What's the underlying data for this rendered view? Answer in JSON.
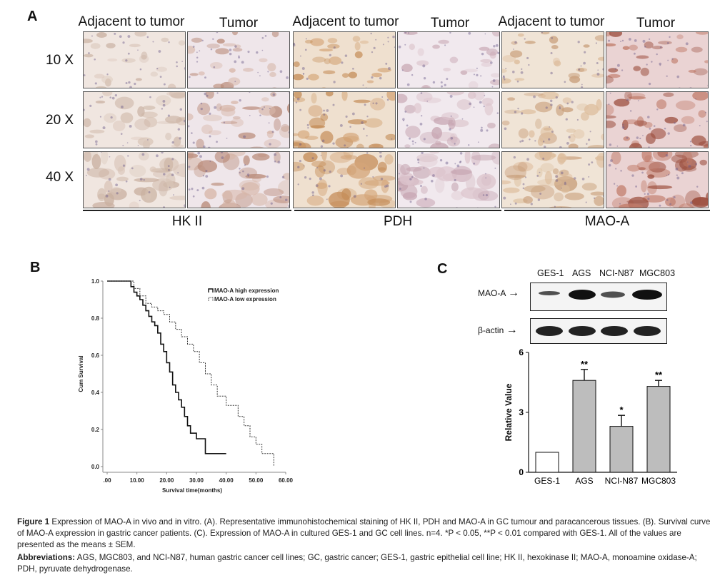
{
  "panel_a": {
    "letter": "A",
    "columns": [
      "Adjacent to tumor",
      "Tumor",
      "Adjacent to tumor",
      "Tumor",
      "Adjacent to tumor",
      "Tumor"
    ],
    "rows": [
      "10 X",
      "20 X",
      "40 X"
    ],
    "markers": [
      "HK II",
      "PDH",
      "MAO-A"
    ]
  },
  "panel_b": {
    "letter": "B"
  },
  "panel_c": {
    "letter": "C",
    "blot_lanes": [
      "GES-1",
      "AGS",
      "NCI-N87",
      "MGC803"
    ],
    "blot_rows": [
      "MAO-A",
      "β-actin"
    ],
    "arrow": "→"
  },
  "chart_data": [
    {
      "type": "line",
      "panel": "B",
      "xlabel": "Survival time(months)",
      "ylabel": "Cum Survival",
      "xlim": [
        0,
        60
      ],
      "ylim": [
        0,
        1.0
      ],
      "x_ticks": [
        ".00",
        "10.00",
        "20.00",
        "30.00",
        "40.00",
        "50.00",
        "60.00"
      ],
      "y_ticks": [
        "0.0",
        "0.2",
        "0.4",
        "0.6",
        "0.8",
        "1.0"
      ],
      "series": [
        {
          "name": "MAO-A high expression",
          "style": "solid",
          "color": "#111111",
          "x": [
            0,
            7,
            8,
            9,
            10,
            11,
            12,
            13,
            14,
            15,
            16,
            17,
            18,
            19,
            20,
            21,
            22,
            23,
            24,
            25,
            26,
            27,
            28,
            30,
            32,
            33,
            40
          ],
          "y": [
            1.0,
            1.0,
            0.97,
            0.94,
            0.92,
            0.9,
            0.87,
            0.84,
            0.81,
            0.78,
            0.76,
            0.72,
            0.66,
            0.62,
            0.56,
            0.51,
            0.44,
            0.4,
            0.36,
            0.32,
            0.27,
            0.22,
            0.18,
            0.15,
            0.15,
            0.07,
            0.07
          ]
        },
        {
          "name": "MAO-A low expression",
          "style": "dashed",
          "color": "#333333",
          "x": [
            0,
            7,
            9,
            11,
            13,
            15,
            17,
            19,
            21,
            23,
            25,
            27,
            29,
            31,
            33,
            35,
            37,
            40,
            42,
            44,
            46,
            48,
            50,
            52,
            56
          ],
          "y": [
            1.0,
            1.0,
            0.96,
            0.92,
            0.88,
            0.86,
            0.84,
            0.82,
            0.78,
            0.74,
            0.7,
            0.66,
            0.62,
            0.56,
            0.5,
            0.44,
            0.38,
            0.33,
            0.33,
            0.27,
            0.22,
            0.16,
            0.12,
            0.07,
            0.0
          ]
        }
      ]
    },
    {
      "type": "bar",
      "panel": "C",
      "ylabel": "Relative Value",
      "ylim": [
        0,
        6
      ],
      "y_ticks": [
        "0",
        "3",
        "6"
      ],
      "categories": [
        "GES-1",
        "AGS",
        "NCI-N87",
        "MGC803"
      ],
      "values": [
        1.0,
        4.6,
        2.3,
        4.3
      ],
      "errors": [
        0,
        0.55,
        0.55,
        0.3
      ],
      "significance": [
        "",
        "**",
        "*",
        "**"
      ],
      "colors": [
        "#ffffff",
        "#bdbdbd",
        "#bdbdbd",
        "#bdbdbd"
      ]
    }
  ],
  "caption": {
    "label": "Figure 1",
    "text": "Expression of MAO-A in vivo and in vitro. (A). Representative immunohistochemical staining of HK II, PDH and MAO-A in GC tumour and paracancerous tissues. (B). Survival curve of MAO-A expression in gastric cancer patients. (C). Expression of MAO-A in cultured GES-1 and GC cell lines. n=4. *P < 0.05, **P < 0.01 compared with GES-1. All of the values are presented as the means ± SEM.",
    "abbr_label": "Abbreviations:",
    "abbr_text": "AGS, MGC803, and NCI-N87, human gastric cancer cell lines; GC, gastric cancer; GES-1, gastric epithelial cell line; HK II, hexokinase II; MAO-A, monoamine oxidase-A; PDH, pyruvate dehydrogenase."
  }
}
